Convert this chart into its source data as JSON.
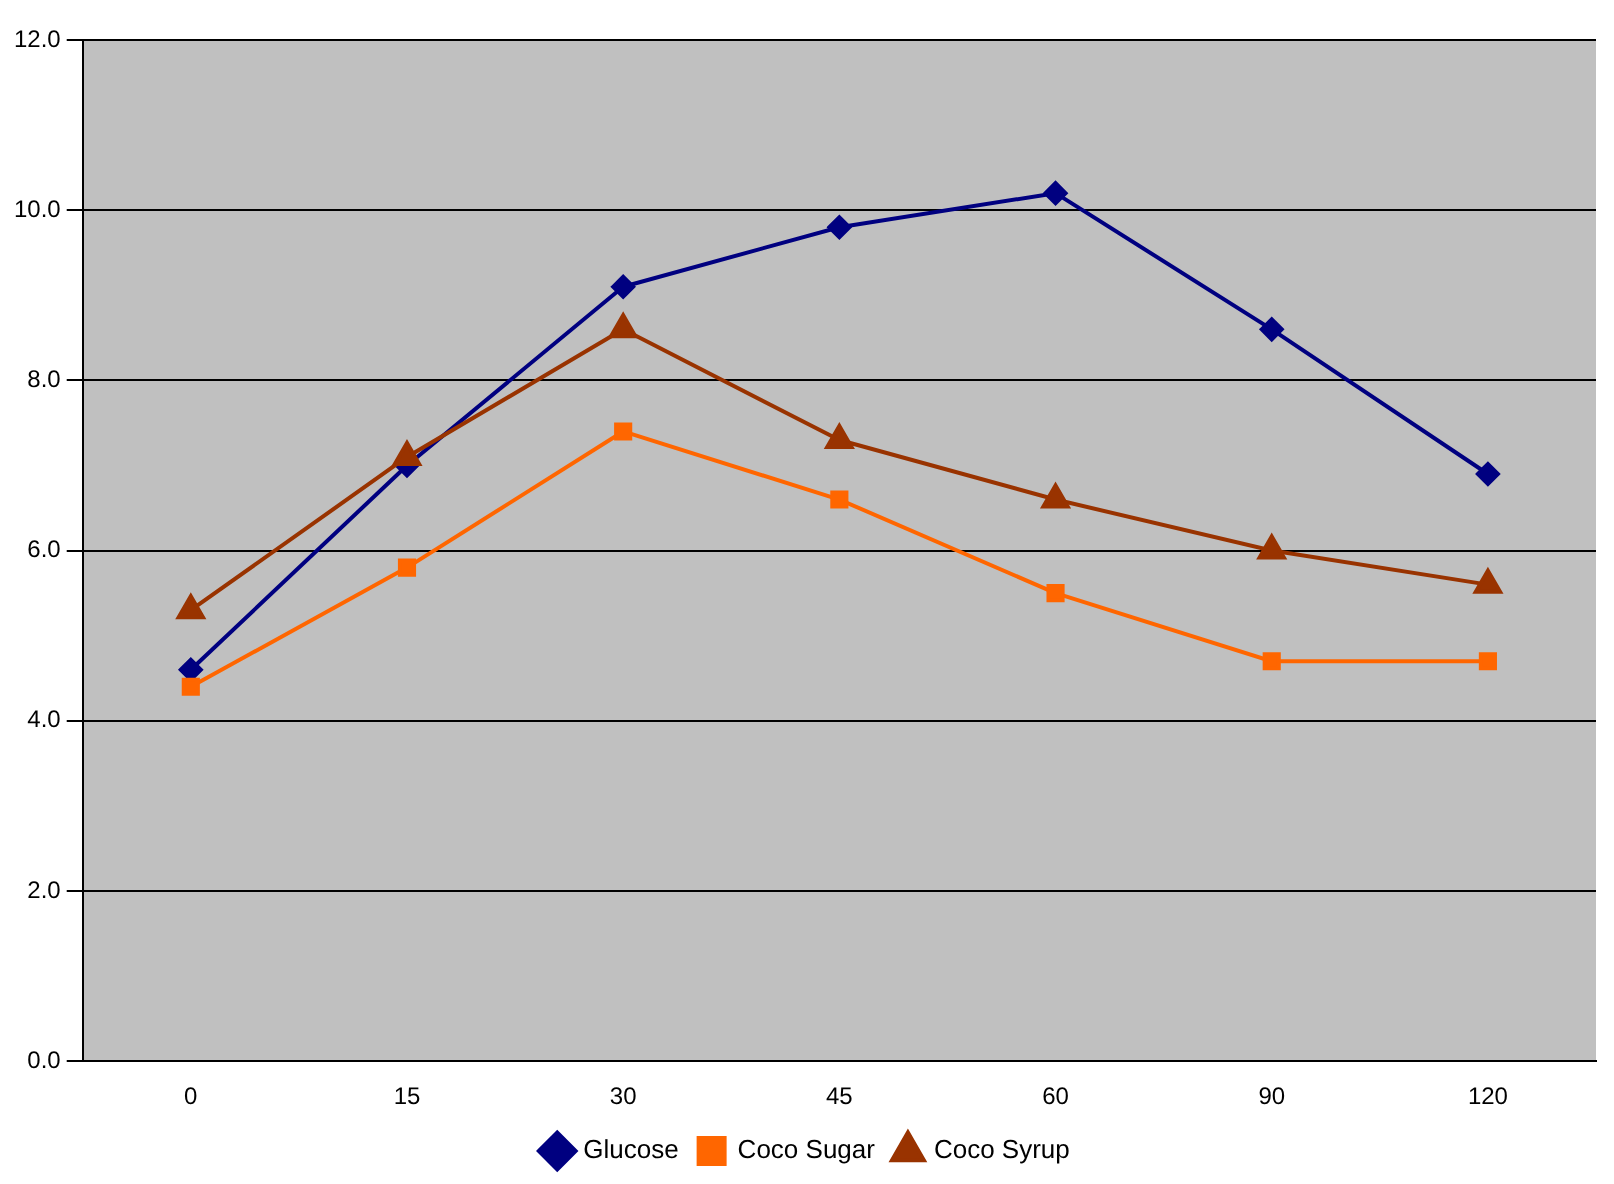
{
  "chart_data": {
    "type": "line",
    "categories": [
      "0",
      "15",
      "30",
      "45",
      "60",
      "90",
      "120"
    ],
    "ylim": [
      0,
      12
    ],
    "yticks": [
      {
        "value": 0,
        "label": "0.0"
      },
      {
        "value": 2,
        "label": "2.0"
      },
      {
        "value": 4,
        "label": "4.0"
      },
      {
        "value": 6,
        "label": "6.0"
      },
      {
        "value": 8,
        "label": "8.0"
      },
      {
        "value": 10,
        "label": "10.0"
      },
      {
        "value": 12,
        "label": "12.0"
      }
    ],
    "grid": "y",
    "legend": "bottom",
    "line_style": "solid",
    "series": [
      {
        "name": "Glucose",
        "color": "#000080",
        "marker": "diamond",
        "values": [
          4.6,
          7.0,
          9.1,
          9.8,
          10.2,
          8.6,
          6.9
        ]
      },
      {
        "name": "Coco Sugar",
        "color": "#ff6600",
        "marker": "square",
        "values": [
          4.4,
          5.8,
          7.4,
          6.6,
          5.5,
          4.7,
          4.7
        ]
      },
      {
        "name": "Coco Syrup",
        "color": "#993300",
        "marker": "triangle",
        "values": [
          5.3,
          7.1,
          8.6,
          7.3,
          6.6,
          6.0,
          5.6
        ]
      }
    ]
  }
}
